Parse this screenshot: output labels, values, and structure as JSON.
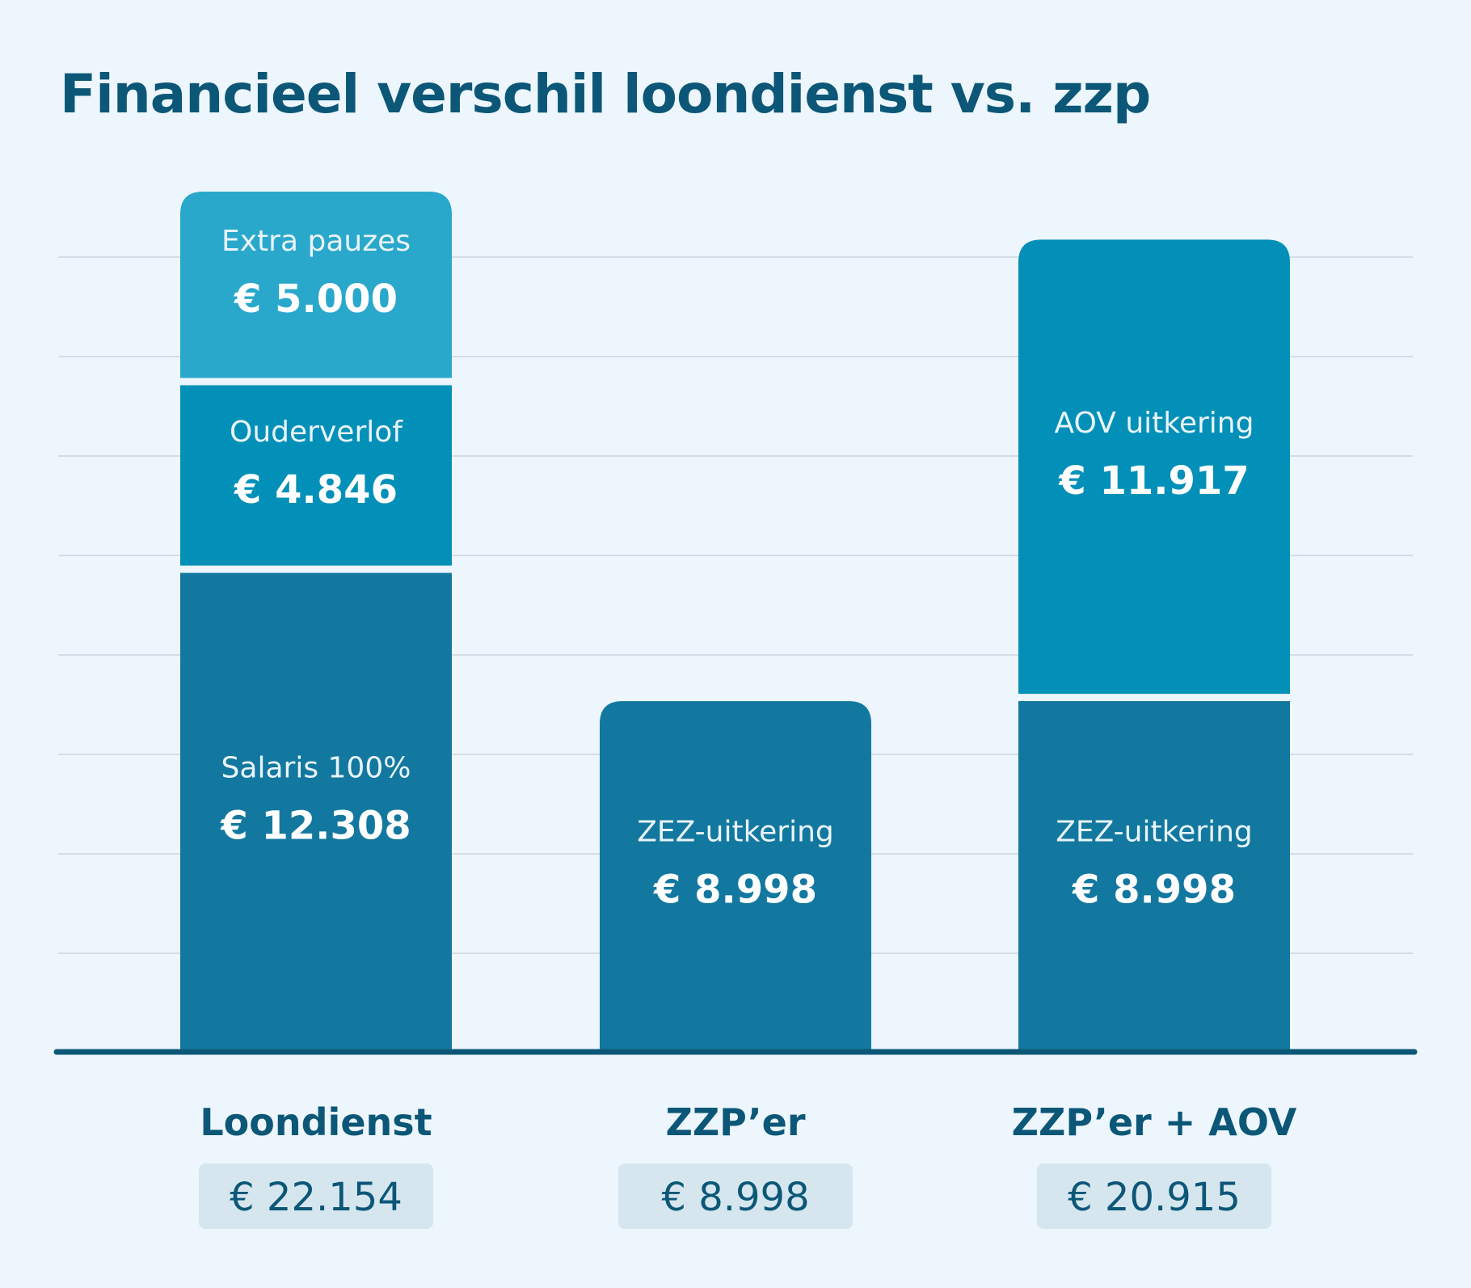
{
  "title": "Financieel verschil loondienst vs. zzp",
  "colors": {
    "background": "#edf6fd",
    "title": "#0c5777",
    "gridline": "#d4dde5",
    "baseline": "#0c5777",
    "total_badge": "#d6e6ef",
    "segment_dark": "#13789f",
    "segment_mid": "#0390b8",
    "segment_light": "#2aa8cb"
  },
  "chart_data": {
    "type": "bar",
    "stacked": true,
    "title": "Financieel verschil loondienst vs. zzp",
    "xlabel": "",
    "ylabel": "",
    "ylim": [
      0,
      22154
    ],
    "grid": true,
    "legend": "none",
    "categories": [
      "Loondienst",
      "ZZP’er",
      "ZZP’er + AOV"
    ],
    "totals": [
      "€ 22.154",
      "€ 8.998",
      "€ 20.915"
    ],
    "bars": [
      {
        "category": "Loondienst",
        "segments": [
          {
            "label": "Salaris 100%",
            "value": 12308,
            "display": "€ 12.308",
            "color": "#13789f"
          },
          {
            "label": "Ouderverlof",
            "value": 4846,
            "display": "€ 4.846",
            "color": "#0390b8"
          },
          {
            "label": "Extra pauzes",
            "value": 5000,
            "display": "€ 5.000",
            "color": "#2aa8cb"
          }
        ]
      },
      {
        "category": "ZZP’er",
        "segments": [
          {
            "label": "ZEZ-uitkering",
            "value": 8998,
            "display": "€ 8.998",
            "color": "#13789f"
          }
        ]
      },
      {
        "category": "ZZP’er + AOV",
        "segments": [
          {
            "label": "ZEZ-uitkering",
            "value": 8998,
            "display": "€ 8.998",
            "color": "#13789f"
          },
          {
            "label": "AOV uitkering",
            "value": 11917,
            "display": "€ 11.917",
            "color": "#0390b8"
          }
        ]
      }
    ]
  }
}
